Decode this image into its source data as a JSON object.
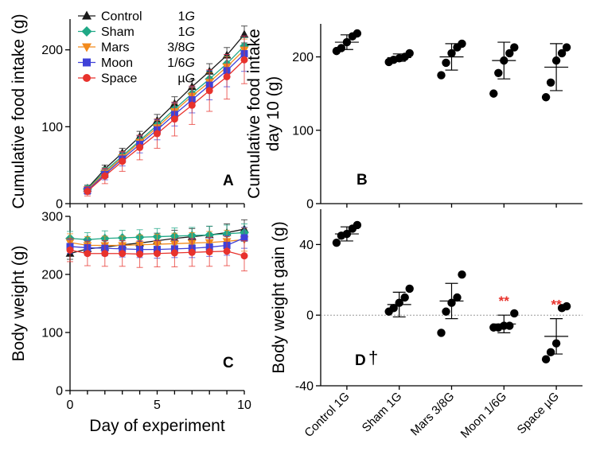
{
  "chart_data": [
    {
      "id": "A",
      "type": "line",
      "panel_label": "A",
      "ylabel": "Cumulative food intake (g)",
      "xlabel": "",
      "xlim": [
        0,
        10
      ],
      "ylim": [
        0,
        240
      ],
      "xticks": [
        "0",
        "5",
        "10"
      ],
      "yticks": [
        "0",
        "100",
        "200"
      ],
      "x": [
        1,
        2,
        3,
        4,
        5,
        6,
        7,
        8,
        9,
        10
      ],
      "series": [
        {
          "name": "Control 1G",
          "color": "#1a1a1a",
          "marker": "triangle-up",
          "values": [
            20,
            45,
            66,
            87,
            108,
            130,
            152,
            172,
            193,
            220
          ],
          "errors": [
            4,
            5,
            6,
            7,
            8,
            9,
            9,
            10,
            10,
            11
          ]
        },
        {
          "name": "Sham 1G",
          "color": "#1fa886",
          "marker": "diamond",
          "values": [
            19,
            42,
            62,
            82,
            102,
            123,
            143,
            162,
            182,
            205
          ],
          "errors": [
            4,
            5,
            6,
            7,
            8,
            9,
            9,
            10,
            10,
            11
          ]
        },
        {
          "name": "Mars 3/8G",
          "color": "#f28a1c",
          "marker": "triangle-down",
          "values": [
            18,
            40,
            60,
            80,
            99,
            120,
            140,
            158,
            178,
            200
          ],
          "errors": [
            4,
            6,
            7,
            8,
            9,
            10,
            11,
            12,
            13,
            14
          ]
        },
        {
          "name": "Moon 1/6G",
          "color": "#3f41d8",
          "marker": "square",
          "values": [
            17,
            38,
            58,
            77,
            96,
            116,
            135,
            154,
            173,
            195
          ],
          "errors": [
            5,
            7,
            9,
            11,
            13,
            15,
            17,
            19,
            21,
            23
          ]
        },
        {
          "name": "Space µG",
          "color": "#e8322c",
          "marker": "circle",
          "values": [
            16,
            36,
            55,
            73,
            91,
            110,
            128,
            147,
            165,
            187
          ],
          "errors": [
            6,
            10,
            13,
            16,
            19,
            22,
            25,
            27,
            29,
            31
          ]
        }
      ]
    },
    {
      "id": "B",
      "type": "scatter",
      "panel_label": "B",
      "ylabel": "Cumulative food intake day 10 (g)",
      "ylabel_lines": [
        "Cumulative food intake",
        "day 10 (g)"
      ],
      "categories": [
        "Control 1G",
        "Sham 1G",
        "Mars 3/8G",
        "Moon 1/6G",
        "Space µG"
      ],
      "ylim": [
        0,
        245
      ],
      "yticks": [
        "0",
        "100",
        "200"
      ],
      "points": [
        [
          208,
          212,
          220,
          228,
          232
        ],
        [
          193,
          196,
          198,
          200,
          205
        ],
        [
          175,
          192,
          205,
          213,
          218
        ],
        [
          150,
          178,
          195,
          205,
          213
        ],
        [
          145,
          165,
          195,
          205,
          213
        ]
      ],
      "mean": [
        220,
        199,
        200,
        195,
        186
      ],
      "sd": [
        10,
        5,
        18,
        25,
        32
      ]
    },
    {
      "id": "C",
      "type": "line",
      "panel_label": "C",
      "ylabel": "Body weight (g)",
      "xlabel": "Day of experiment",
      "xlim": [
        0,
        10
      ],
      "ylim": [
        0,
        300
      ],
      "xticks": [
        "0",
        "5",
        "10"
      ],
      "yticks": [
        "0",
        "100",
        "200",
        "300"
      ],
      "x": [
        0,
        1,
        2,
        3,
        4,
        5,
        6,
        7,
        8,
        9,
        10
      ],
      "series": [
        {
          "name": "Control 1G",
          "color": "#1a1a1a",
          "marker": "triangle-up",
          "values": [
            236,
            244,
            247,
            251,
            254,
            258,
            262,
            265,
            268,
            272,
            278
          ],
          "errors": [
            10,
            11,
            12,
            12,
            13,
            13,
            14,
            14,
            15,
            15,
            16
          ]
        },
        {
          "name": "Sham 1G",
          "color": "#1fa886",
          "marker": "diamond",
          "values": [
            262,
            260,
            262,
            263,
            264,
            265,
            266,
            267,
            268,
            270,
            272
          ],
          "errors": [
            12,
            12,
            13,
            13,
            13,
            14,
            14,
            14,
            15,
            15,
            15
          ]
        },
        {
          "name": "Mars 3/8G",
          "color": "#f28a1c",
          "marker": "triangle-down",
          "values": [
            255,
            250,
            250,
            250,
            251,
            252,
            253,
            254,
            255,
            257,
            260
          ],
          "errors": [
            15,
            15,
            16,
            16,
            17,
            17,
            18,
            18,
            19,
            19,
            20
          ]
        },
        {
          "name": "Moon 1/6G",
          "color": "#3f41d8",
          "marker": "square",
          "values": [
            248,
            246,
            245,
            244,
            243,
            243,
            244,
            245,
            247,
            250,
            263
          ],
          "errors": [
            12,
            13,
            13,
            14,
            14,
            15,
            15,
            16,
            16,
            17,
            18
          ]
        },
        {
          "name": "Space µG",
          "color": "#e8322c",
          "marker": "circle",
          "values": [
            242,
            236,
            236,
            236,
            235,
            236,
            237,
            238,
            239,
            240,
            232
          ],
          "errors": [
            20,
            21,
            22,
            22,
            23,
            23,
            24,
            24,
            25,
            25,
            26
          ]
        }
      ]
    },
    {
      "id": "D",
      "type": "scatter",
      "panel_label": "D",
      "panel_mark": "†",
      "ylabel": "Body weight gain (g)",
      "categories": [
        "Control 1G",
        "Sham 1G",
        "Mars 3/8G",
        "Moon 1/6G",
        "Space µG"
      ],
      "ylim": [
        -40,
        60
      ],
      "yticks": [
        "-40",
        "0",
        "40"
      ],
      "reference_line": 0,
      "points": [
        [
          41,
          45,
          46,
          49,
          51
        ],
        [
          2,
          4,
          7,
          10,
          15
        ],
        [
          -10,
          2,
          7,
          10,
          23
        ],
        [
          -7,
          -7,
          -6,
          -6,
          1
        ],
        [
          -25,
          -21,
          -16,
          4,
          5
        ]
      ],
      "mean": [
        46,
        6,
        8,
        -5,
        -12
      ],
      "sd": [
        4,
        7,
        10,
        5,
        10
      ],
      "significance": [
        "",
        "",
        "",
        "**",
        "**"
      ],
      "significance_color": "#e8322c"
    }
  ],
  "legend": [
    {
      "name": "Control",
      "factor": "1",
      "unit": "G",
      "color": "#1a1a1a",
      "marker": "triangle-up"
    },
    {
      "name": "Sham",
      "factor": "1",
      "unit": "G",
      "color": "#1fa886",
      "marker": "diamond"
    },
    {
      "name": "Mars",
      "factor": "3/8",
      "unit": "G",
      "color": "#f28a1c",
      "marker": "triangle-down"
    },
    {
      "name": "Moon",
      "factor": "1/6",
      "unit": "G",
      "color": "#3f41d8",
      "marker": "square"
    },
    {
      "name": "Space",
      "factor": "µ",
      "unit": "G",
      "color": "#e8322c",
      "marker": "circle"
    }
  ]
}
